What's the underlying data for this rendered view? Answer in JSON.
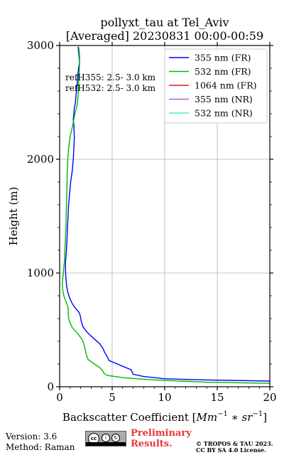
{
  "title_line1": "pollyxt_tau at Tel_Aviv",
  "title_line2": "[Averaged] 20230831 00:00-00:59",
  "annotation": {
    "line1": "refH355:  2.5- 3.0 km",
    "line2": "refH532:  2.5- 3.0 km"
  },
  "footer": {
    "version": "Version: 3.6",
    "method": "Method: Raman",
    "preliminary": "Preliminary Results.",
    "copyright_line1": "© TROPOS & TAU 2023.",
    "copyright_line2": "CC BY SA 4.0 License."
  },
  "chart_data": {
    "type": "line",
    "xlabel": "Backscatter Coefficient [Mm⁻¹ * sr⁻¹]",
    "xlabel_parts": {
      "pre": "Backscatter Coefficient [",
      "mm": "Mm",
      "sup1": "−1",
      "mid": " ∗ ",
      "sr": "sr",
      "sup2": "−1",
      "post": "]"
    },
    "ylabel": "Height (m)",
    "xlim": [
      0,
      20
    ],
    "ylim": [
      0,
      3000
    ],
    "xticks": [
      0,
      5,
      10,
      15,
      20
    ],
    "yticks": [
      0,
      1000,
      2000,
      3000
    ],
    "grid": true,
    "legend_position": "top-right",
    "series": [
      {
        "name": "355 nm (FR)",
        "color": "#0000ff",
        "x": [
          20.0,
          14.0,
          10.0,
          8.0,
          7.0,
          6.9,
          6.8,
          6.0,
          5.5,
          4.7,
          4.6,
          4.5,
          4.3,
          4.1,
          3.8,
          3.3,
          2.6,
          2.2,
          2.05,
          1.95,
          1.8,
          1.5,
          1.2,
          0.95,
          0.75,
          0.65,
          0.6,
          0.57,
          0.55,
          0.56,
          0.6,
          0.65,
          0.7,
          0.75,
          0.8,
          0.85,
          0.95,
          1.05,
          1.2,
          1.3,
          1.35,
          1.4,
          1.35,
          1.3,
          1.35,
          1.4,
          1.5,
          1.6,
          1.7,
          1.8,
          1.9,
          1.85,
          1.8,
          1.75
        ],
        "y": [
          50,
          60,
          70,
          90,
          110,
          130,
          150,
          180,
          200,
          230,
          250,
          270,
          300,
          340,
          380,
          420,
          480,
          530,
          580,
          630,
          660,
          690,
          730,
          780,
          840,
          900,
          950,
          1000,
          1050,
          1100,
          1150,
          1200,
          1300,
          1400,
          1500,
          1600,
          1700,
          1800,
          1900,
          2000,
          2100,
          2200,
          2300,
          2350,
          2400,
          2450,
          2500,
          2600,
          2700,
          2800,
          2850,
          2900,
          2950,
          2990
        ]
      },
      {
        "name": "532 nm (FR)",
        "color": "#00bb00",
        "x": [
          20.0,
          14.0,
          9.0,
          6.0,
          4.5,
          4.2,
          4.1,
          3.8,
          3.3,
          2.7,
          2.55,
          2.45,
          2.3,
          2.1,
          1.7,
          1.2,
          1.0,
          0.85,
          0.82,
          0.8,
          0.6,
          0.4,
          0.3,
          0.25,
          0.3,
          0.35,
          0.4,
          0.45,
          0.5,
          0.55,
          0.6,
          0.62,
          0.65,
          0.68,
          0.7,
          0.72,
          0.78,
          0.85,
          1.0,
          1.25,
          1.45,
          1.6,
          1.7,
          1.75,
          1.78,
          1.8,
          1.82,
          1.85,
          1.88,
          1.9,
          1.9,
          1.88,
          1.85,
          1.8
        ],
        "y": [
          30,
          40,
          60,
          80,
          100,
          120,
          140,
          170,
          200,
          240,
          280,
          320,
          380,
          420,
          470,
          520,
          560,
          600,
          650,
          700,
          750,
          800,
          850,
          900,
          950,
          1000,
          1050,
          1100,
          1200,
          1300,
          1400,
          1500,
          1600,
          1700,
          1800,
          1900,
          2000,
          2100,
          2200,
          2300,
          2400,
          2450,
          2500,
          2550,
          2600,
          2650,
          2700,
          2750,
          2800,
          2850,
          2900,
          2930,
          2960,
          2990
        ]
      },
      {
        "name": "1064 nm (FR)",
        "color": "#e8161c",
        "x": [],
        "y": []
      },
      {
        "name": "355 nm (NR)",
        "color": "#b05fe8",
        "x": [],
        "y": []
      },
      {
        "name": "532 nm (NR)",
        "color": "#4ff0c8",
        "x": [],
        "y": []
      }
    ]
  }
}
